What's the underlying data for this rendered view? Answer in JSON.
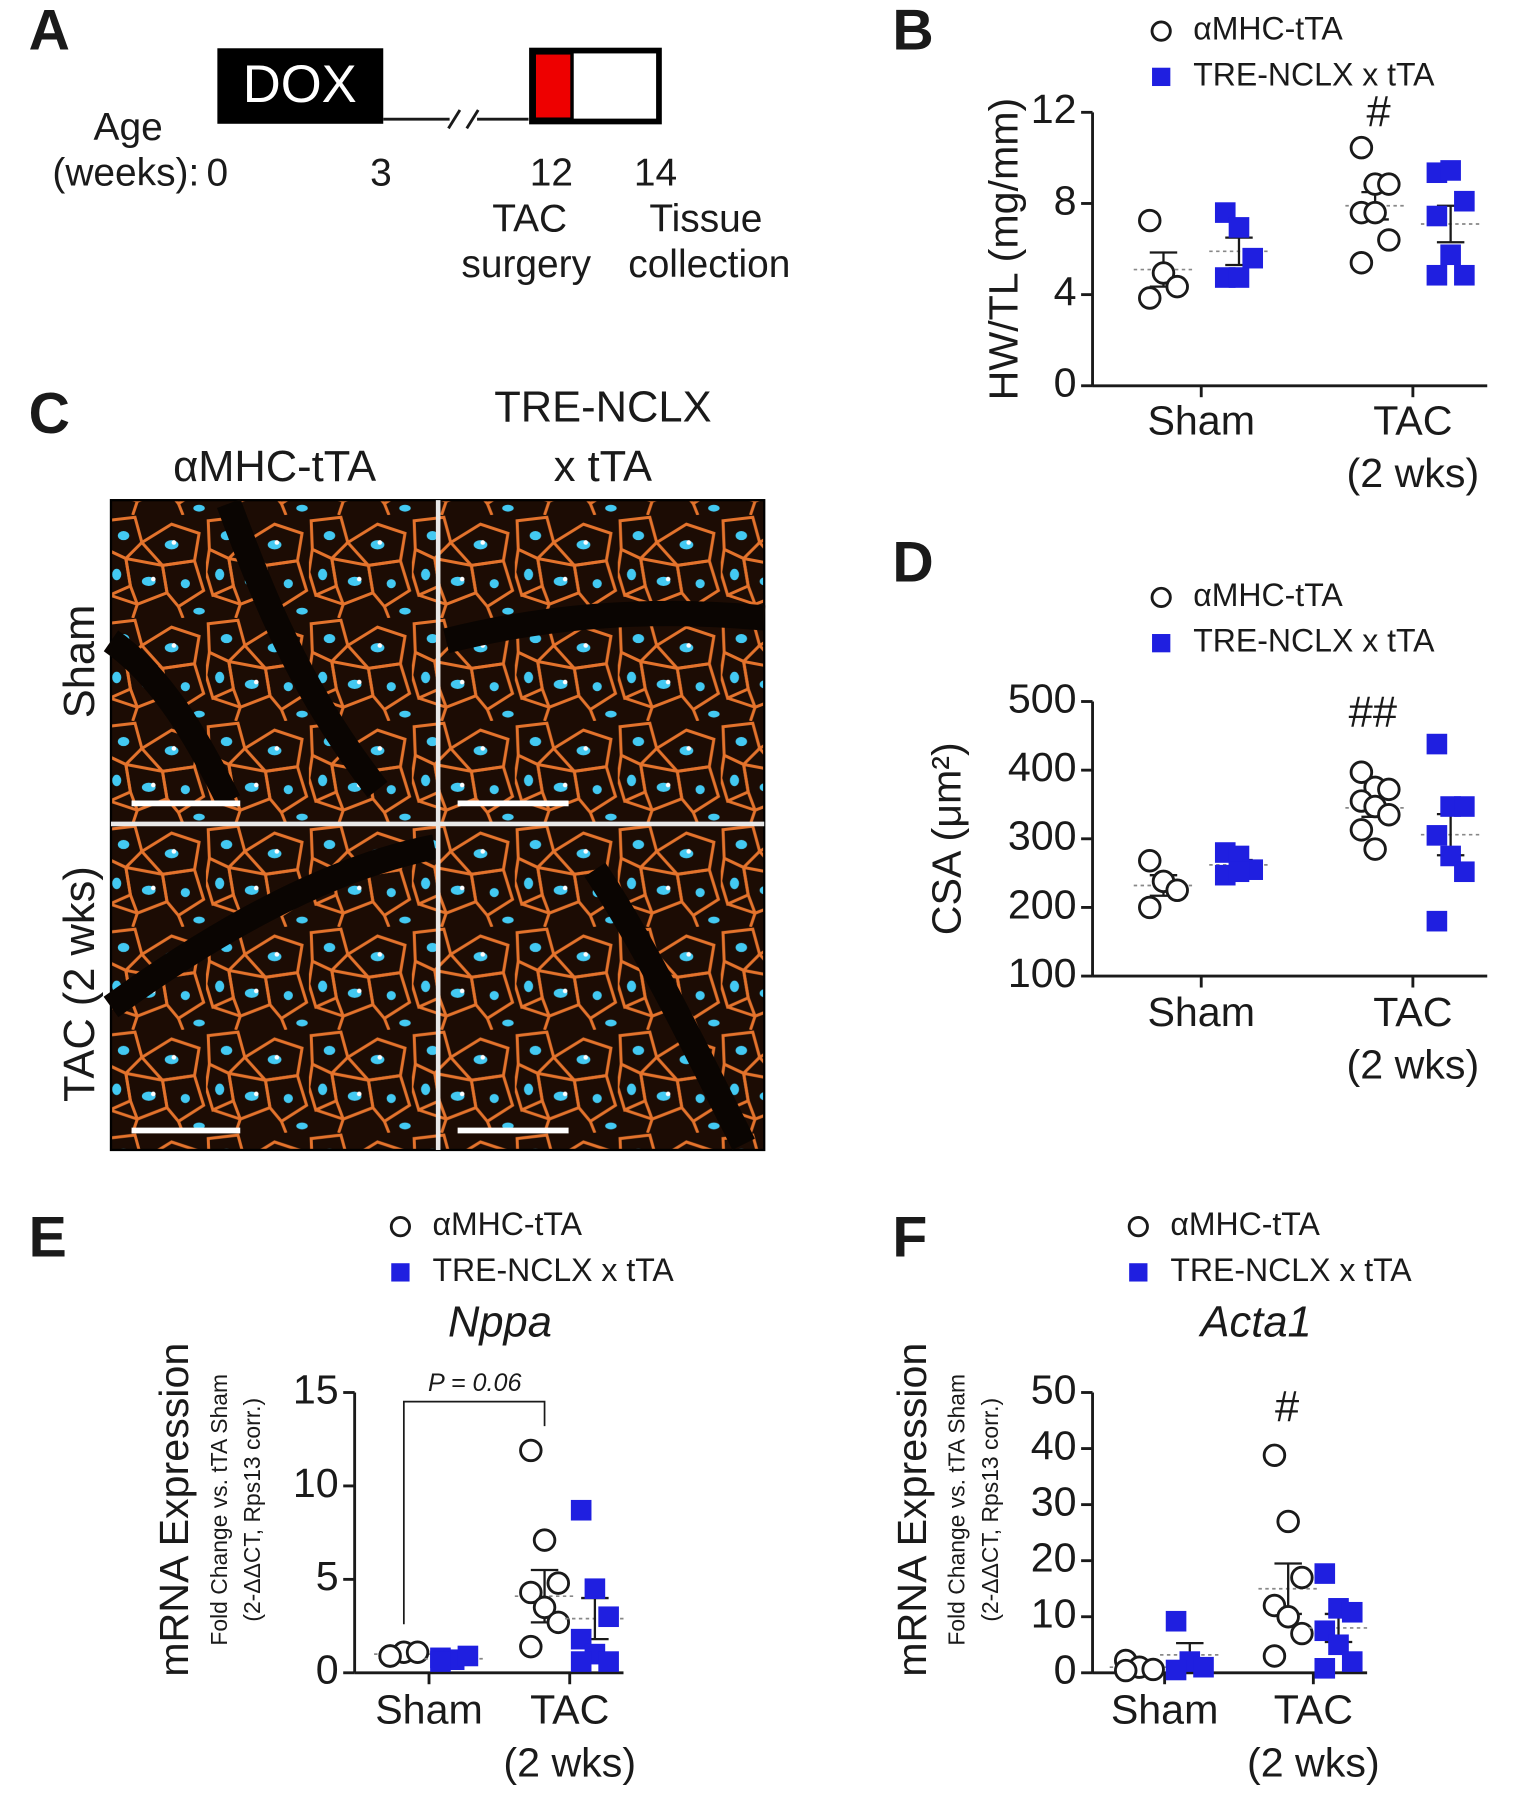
{
  "panel_a": {
    "label": "A",
    "box": "DOX",
    "age_lines": [
      "Age",
      "(weeks):"
    ],
    "ticks": [
      "0",
      "3",
      "12",
      "14"
    ],
    "events": [
      [
        "TAC",
        "surgery"
      ],
      [
        "Tissue",
        "collection"
      ]
    ]
  },
  "panel_c": {
    "label": "C",
    "columns": [
      [
        "αMHC-tTA"
      ],
      [
        "TRE-NCLX",
        "x tTA"
      ]
    ],
    "rows": [
      "Sham",
      "TAC (2 wks)"
    ]
  },
  "chart_data": [
    {
      "type": "dot",
      "panel_label": "B",
      "ylabel": [
        "HW/TL (mg/mm)"
      ],
      "categories": [
        [
          "Sham"
        ],
        [
          "TAC",
          "(2 wks)"
        ]
      ],
      "ylim": [
        0,
        12
      ],
      "yticks": [
        0,
        4,
        8,
        12
      ],
      "annotations": [
        "#"
      ],
      "series": [
        {
          "name": "αMHC-tTA",
          "color": "#1a1a1a",
          "marker": "circle",
          "values": [
            [
              7.25,
              4.95,
              4.35,
              3.85
            ],
            [
              10.45,
              8.85,
              8.85,
              7.6,
              7.6,
              6.4,
              5.4
            ]
          ],
          "mean": [
            5.1,
            7.9
          ],
          "sem": [
            0.75,
            0.6
          ]
        },
        {
          "name": "TRE-NCLX x tTA",
          "color": "#1f1fe0",
          "marker": "square",
          "values": [
            [
              7.6,
              6.95,
              5.6,
              4.75,
              4.75
            ],
            [
              9.35,
              9.45,
              8.1,
              7.45,
              5.75,
              4.85,
              4.85
            ]
          ],
          "mean": [
            5.9,
            7.1
          ],
          "sem": [
            0.6,
            0.8
          ]
        }
      ]
    },
    {
      "type": "dot",
      "panel_label": "D",
      "ylabel": [
        "CSA (μm²)"
      ],
      "categories": [
        [
          "Sham"
        ],
        [
          "TAC",
          "(2 wks)"
        ]
      ],
      "ylim": [
        100,
        500
      ],
      "yticks": [
        100,
        200,
        300,
        400,
        500
      ],
      "annotations": [
        "##"
      ],
      "series": [
        {
          "name": "αMHC-tTA",
          "color": "#1a1a1a",
          "marker": "circle",
          "values": [
            [
              268,
              238,
              225,
              200
            ],
            [
              397,
              375,
              372,
              355,
              347,
              335,
              313,
              285
            ]
          ],
          "mean": [
            232,
            345
          ],
          "sem": [
            15,
            13
          ]
        },
        {
          "name": "TRE-NCLX x tTA",
          "color": "#1f1fe0",
          "marker": "square",
          "values": [
            [
              280,
              275,
              255,
              247,
              252
            ],
            [
              438,
              347,
              347,
              305,
              275,
              252,
              180
            ]
          ],
          "mean": [
            262,
            306
          ],
          "sem": [
            7,
            30
          ]
        }
      ]
    },
    {
      "type": "dot",
      "panel_label": "E",
      "title": "Nppa",
      "ylabel": [
        "mRNA Expression",
        "Fold Change vs. tTA Sham",
        "(2-ΔΔCT, Rps13 corr.)"
      ],
      "categories": [
        [
          "Sham"
        ],
        [
          "TAC",
          "(2 wks)"
        ]
      ],
      "ylim": [
        0,
        15
      ],
      "yticks": [
        0,
        5,
        10,
        15
      ],
      "annotations": [
        "P = 0.06"
      ],
      "series": [
        {
          "name": "αMHC-tTA",
          "color": "#1a1a1a",
          "marker": "circle",
          "values": [
            [
              0.9,
              1.1,
              1.1,
              0.9
            ],
            [
              11.9,
              7.1,
              4.8,
              4.3,
              3.5,
              2.7,
              1.4
            ]
          ],
          "mean": [
            1.0,
            4.1
          ],
          "sem": [
            0.1,
            1.4
          ]
        },
        {
          "name": "TRE-NCLX x tTA",
          "color": "#1f1fe0",
          "marker": "square",
          "values": [
            [
              0.8,
              0.7,
              0.9,
              0.6
            ],
            [
              8.7,
              4.5,
              3.0,
              1.8,
              1.0,
              0.6,
              0.6
            ]
          ],
          "mean": [
            0.75,
            2.9
          ],
          "sem": [
            0.1,
            1.1
          ]
        }
      ]
    },
    {
      "type": "dot",
      "panel_label": "F",
      "title": "Acta1",
      "ylabel": [
        "mRNA Expression",
        "Fold Change vs. tTA Sham",
        "(2-ΔΔCT, Rps13 corr.)"
      ],
      "categories": [
        [
          "Sham"
        ],
        [
          "TAC",
          "(2 wks)"
        ]
      ],
      "ylim": [
        0,
        50
      ],
      "yticks": [
        0,
        10,
        20,
        30,
        40,
        50
      ],
      "annotations": [
        "#"
      ],
      "series": [
        {
          "name": "αMHC-tTA",
          "color": "#1a1a1a",
          "marker": "circle",
          "values": [
            [
              2.2,
              1.0,
              0.6,
              0.4
            ],
            [
              38.8,
              27,
              17,
              12,
              10,
              7,
              3
            ]
          ],
          "mean": [
            1.0,
            15
          ],
          "sem": [
            0.4,
            4.5
          ]
        },
        {
          "name": "TRE-NCLX x tTA",
          "color": "#1f1fe0",
          "marker": "square",
          "values": [
            [
              9.2,
              2.0,
              1.0,
              0.5
            ],
            [
              17.7,
              11.5,
              10.8,
              7.5,
              5,
              2,
              0.8
            ]
          ],
          "mean": [
            3.2,
            8
          ],
          "sem": [
            2.1,
            2.5
          ]
        }
      ]
    }
  ]
}
